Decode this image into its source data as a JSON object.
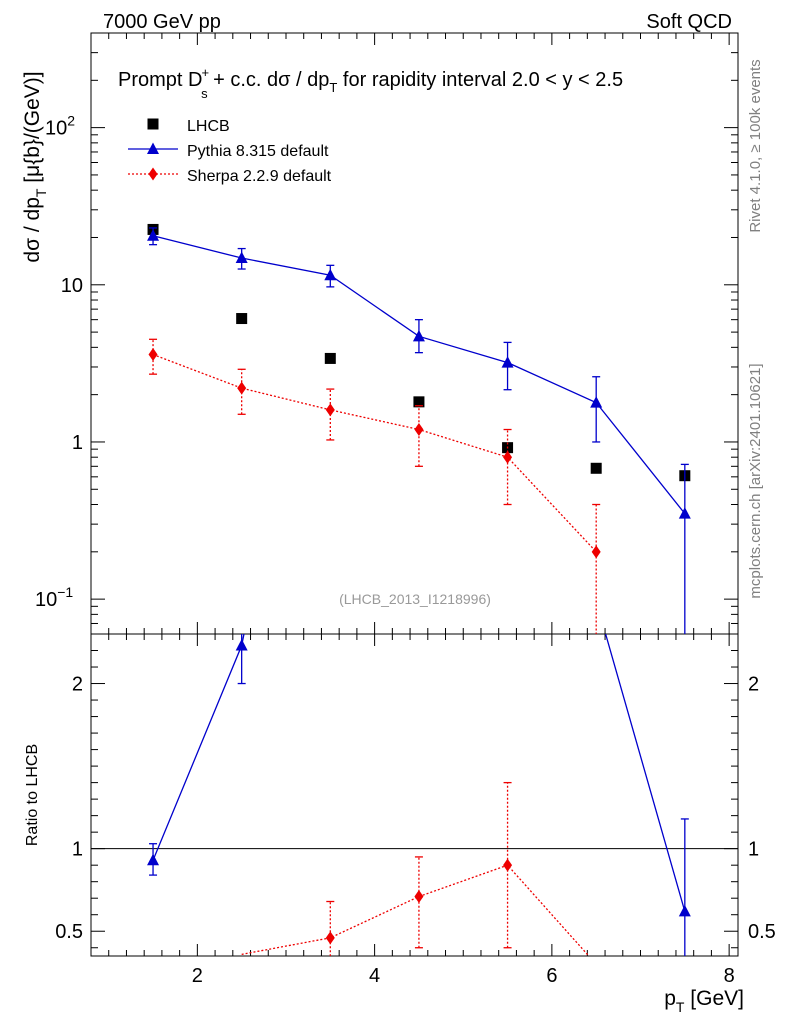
{
  "header": {
    "left_label": "7000 GeV pp",
    "right_label": "Soft QCD"
  },
  "side_labels": {
    "rivet": "Rivet 4.1.0, ≥ 100k events",
    "mcplots": "mcplots.cern.ch [arXiv:2401.10621]"
  },
  "chart_data": [
    {
      "type": "scatter",
      "panel": "main",
      "title": "Prompt D_s^+ + c.c.  dσ / dp_T for rapidity interval 2.0 < y < 2.5",
      "title_parts": {
        "prefix": "Prompt D",
        "sub": "s",
        "sup": "+",
        "main": " + c.c.  dσ / dp",
        "sub2": "T",
        "suffix": " for rapidity interval 2.0 < y < 2.5"
      },
      "ylabel_parts": {
        "a": "dσ / dp",
        "sub": "T",
        "b": " [μ{b}/(GeV)]"
      },
      "yscale": "log",
      "xlim": [
        0.8,
        8.1
      ],
      "ylim": [
        0.06,
        400
      ],
      "yticks": [
        {
          "value": 0.1,
          "base": "10",
          "exp": "−1"
        },
        {
          "value": 1,
          "label": "1"
        },
        {
          "value": 10,
          "label": "10"
        },
        {
          "value": 100,
          "base": "10",
          "exp": "2"
        }
      ],
      "watermark": "(LHCB_2013_I1218996)",
      "legend_position": "top-left",
      "series": [
        {
          "name": "LHCB",
          "color": "#000000",
          "marker": "square",
          "line": "none",
          "x": [
            1.5,
            2.5,
            3.5,
            4.5,
            5.5,
            6.5,
            7.5
          ],
          "y": [
            22.5,
            6.1,
            3.4,
            1.8,
            0.92,
            0.68,
            0.61
          ]
        },
        {
          "name": "Pythia 8.315 default",
          "color": "#0000cc",
          "marker": "triangle",
          "line": "solid",
          "x": [
            1.5,
            2.5,
            3.5,
            4.5,
            5.5,
            6.5,
            7.5
          ],
          "y": [
            20.5,
            14.8,
            11.5,
            4.7,
            3.2,
            1.78,
            0.35
          ],
          "err_low": [
            18.0,
            12.6,
            9.7,
            3.7,
            2.15,
            1.0,
            0.05
          ],
          "err_high": [
            23.0,
            17.0,
            13.3,
            6.0,
            4.3,
            2.6,
            0.72
          ]
        },
        {
          "name": "Sherpa 2.2.9 default",
          "color": "#ee0000",
          "marker": "diamond",
          "line": "dotted",
          "x": [
            1.5,
            2.5,
            3.5,
            4.5,
            5.5,
            6.5
          ],
          "y": [
            3.6,
            2.2,
            1.6,
            1.2,
            0.8,
            0.2
          ],
          "err_low": [
            2.7,
            1.5,
            1.03,
            0.7,
            0.4,
            0.05
          ],
          "err_high": [
            4.5,
            2.9,
            2.17,
            1.7,
            1.2,
            0.4
          ]
        }
      ]
    },
    {
      "type": "scatter",
      "panel": "ratio",
      "ylabel": "Ratio to LHCB",
      "xlabel_parts": {
        "a": "p",
        "sub": "T",
        "b": " [GeV]"
      },
      "xlim": [
        0.8,
        8.1
      ],
      "ylim": [
        0.35,
        2.3
      ],
      "xticks": [
        2,
        4,
        6,
        8
      ],
      "yticks": [
        0.5,
        1,
        2
      ],
      "reference_line": 1,
      "series": [
        {
          "name": "Pythia 8.315 default",
          "color": "#0000cc",
          "marker": "triangle",
          "line": "solid",
          "x": [
            1.5,
            2.5,
            7.5
          ],
          "y": [
            0.93,
            2.23,
            0.62
          ],
          "err_low": [
            0.84,
            2.0,
            0.3
          ],
          "err_high": [
            1.03,
            2.5,
            1.18
          ],
          "line_x": [
            1.5,
            2.5,
            2.6,
            6.5,
            7.5
          ],
          "line_y": [
            0.93,
            2.23,
            2.5,
            2.5,
            0.62
          ]
        },
        {
          "name": "Sherpa 2.2.9 default",
          "color": "#ee0000",
          "marker": "diamond",
          "line": "dotted",
          "x": [
            3.5,
            4.5,
            5.5
          ],
          "y": [
            0.46,
            0.71,
            0.9
          ],
          "err_low": [
            0.3,
            0.4,
            0.4
          ],
          "err_high": [
            0.68,
            0.95,
            1.4
          ],
          "line_x": [
            2.5,
            3.5,
            4.5,
            5.5,
            6.5
          ],
          "line_y": [
            0.36,
            0.46,
            0.71,
            0.9,
            0.3
          ]
        }
      ]
    }
  ]
}
